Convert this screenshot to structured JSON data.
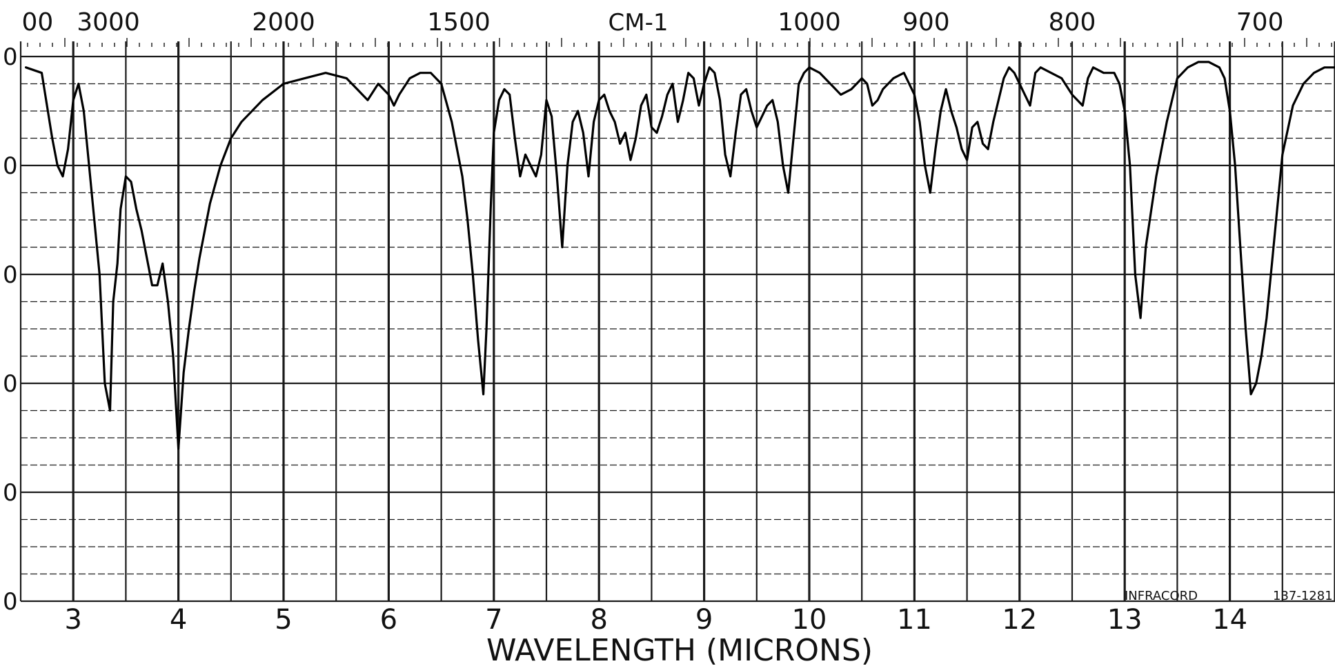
{
  "chart_data": {
    "type": "line",
    "title": "",
    "top_axis_label": "CM-1",
    "top_axis_ticks": [
      "00",
      "3000",
      "2000",
      "1500",
      "1000",
      "900",
      "800",
      "700"
    ],
    "xlabel": "WAVELENGTH (MICRONS)",
    "x_ticks": [
      "3",
      "4",
      "5",
      "6",
      "7",
      "8",
      "9",
      "10",
      "11",
      "12",
      "13",
      "14"
    ],
    "y_ticks_partial": [
      "0",
      "0",
      "0",
      "0",
      "0",
      "0"
    ],
    "xlim": [
      2.5,
      15.0
    ],
    "ylim": [
      0,
      100
    ],
    "grid": true,
    "instrument_label": "INFRACORD",
    "chart_id": "137-1281",
    "series": [
      {
        "x": [
          2.55,
          2.7,
          2.8,
          2.85,
          2.9,
          2.95,
          3.0,
          3.05,
          3.1,
          3.15,
          3.2,
          3.25,
          3.3,
          3.35,
          3.38,
          3.42,
          3.45,
          3.5,
          3.55,
          3.6,
          3.65,
          3.7,
          3.75,
          3.8,
          3.85,
          3.9,
          3.95,
          4.0,
          4.05,
          4.1,
          4.15,
          4.2,
          4.3,
          4.4,
          4.5,
          4.6,
          4.8,
          5.0,
          5.2,
          5.4,
          5.6,
          5.7,
          5.8,
          5.9,
          6.0,
          6.05,
          6.1,
          6.2,
          6.3,
          6.4,
          6.5,
          6.6,
          6.7,
          6.75,
          6.8,
          6.85,
          6.9,
          6.93,
          6.97,
          7.0,
          7.05,
          7.1,
          7.15,
          7.2,
          7.25,
          7.3,
          7.35,
          7.4,
          7.45,
          7.5,
          7.55,
          7.6,
          7.65,
          7.7,
          7.75,
          7.8,
          7.85,
          7.9,
          7.95,
          8.0,
          8.05,
          8.1,
          8.15,
          8.2,
          8.25,
          8.3,
          8.35,
          8.4,
          8.45,
          8.5,
          8.55,
          8.6,
          8.65,
          8.7,
          8.75,
          8.8,
          8.85,
          8.9,
          8.95,
          9.0,
          9.05,
          9.1,
          9.15,
          9.2,
          9.25,
          9.3,
          9.35,
          9.4,
          9.45,
          9.5,
          9.55,
          9.6,
          9.65,
          9.7,
          9.75,
          9.8,
          9.85,
          9.9,
          9.95,
          10.0,
          10.1,
          10.2,
          10.3,
          10.4,
          10.5,
          10.55,
          10.6,
          10.65,
          10.7,
          10.8,
          10.9,
          11.0,
          11.05,
          11.1,
          11.15,
          11.2,
          11.25,
          11.3,
          11.35,
          11.4,
          11.45,
          11.5,
          11.55,
          11.6,
          11.65,
          11.7,
          11.75,
          11.8,
          11.85,
          11.9,
          11.95,
          12.0,
          12.1,
          12.15,
          12.2,
          12.3,
          12.4,
          12.5,
          12.6,
          12.65,
          12.7,
          12.8,
          12.9,
          12.95,
          13.0,
          13.05,
          13.1,
          13.15,
          13.2,
          13.3,
          13.4,
          13.5,
          13.6,
          13.7,
          13.8,
          13.9,
          13.95,
          14.0,
          14.05,
          14.1,
          14.15,
          14.2,
          14.25,
          14.3,
          14.35,
          14.4,
          14.5,
          14.6,
          14.7,
          14.8,
          14.9,
          15.0
        ],
        "y": [
          98,
          97,
          85,
          80,
          78,
          83,
          92,
          95,
          90,
          80,
          70,
          60,
          40,
          35,
          55,
          62,
          72,
          78,
          77,
          72,
          68,
          63,
          58,
          58,
          62,
          55,
          45,
          28,
          42,
          50,
          57,
          63,
          73,
          80,
          85,
          88,
          92,
          95,
          96,
          97,
          96,
          94,
          92,
          95,
          93,
          91,
          93,
          96,
          97,
          97,
          95,
          88,
          78,
          70,
          60,
          48,
          38,
          50,
          72,
          86,
          92,
          94,
          93,
          85,
          78,
          82,
          80,
          78,
          82,
          92,
          89,
          78,
          65,
          80,
          88,
          90,
          86,
          78,
          88,
          92,
          93,
          90,
          88,
          84,
          86,
          81,
          85,
          91,
          93,
          87,
          86,
          89,
          93,
          95,
          88,
          92,
          97,
          96,
          91,
          95,
          98,
          97,
          92,
          82,
          78,
          86,
          93,
          94,
          90,
          87,
          89,
          91,
          92,
          88,
          80,
          75,
          85,
          95,
          97,
          98,
          97,
          95,
          93,
          94,
          96,
          95,
          91,
          92,
          94,
          96,
          97,
          93,
          88,
          80,
          75,
          83,
          90,
          94,
          90,
          87,
          83,
          81,
          87,
          88,
          84,
          83,
          88,
          92,
          96,
          98,
          97,
          95,
          91,
          97,
          98,
          97,
          96,
          93,
          91,
          96,
          98,
          97,
          97,
          95,
          90,
          80,
          60,
          52,
          65,
          78,
          88,
          96,
          98,
          99,
          99,
          98,
          96,
          90,
          80,
          65,
          50,
          38,
          40,
          45,
          52,
          62,
          82,
          91,
          95,
          97,
          98,
          98
        ]
      }
    ]
  }
}
